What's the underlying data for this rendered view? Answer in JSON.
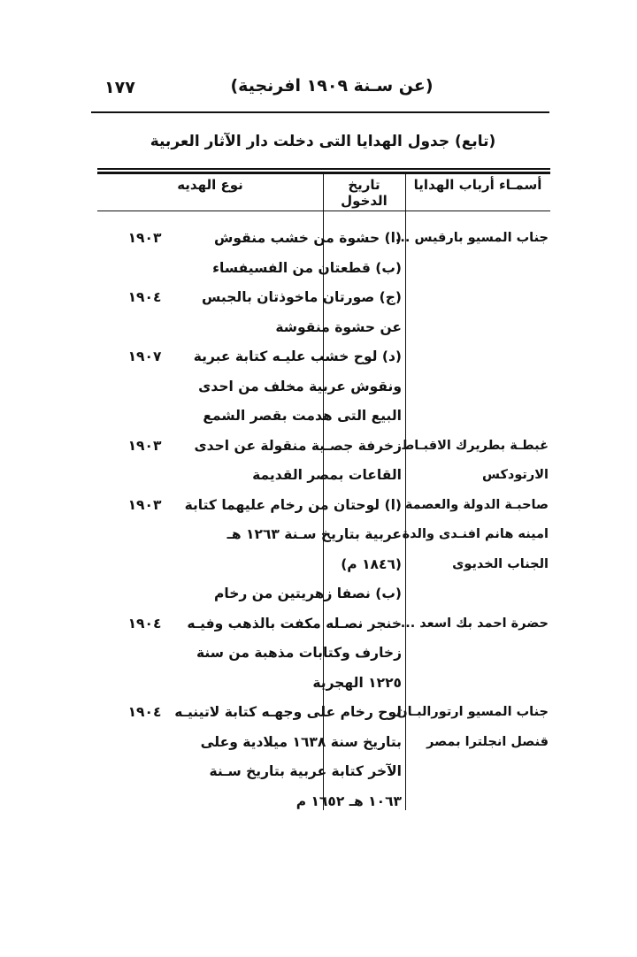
{
  "page_number": "١٧٧",
  "running_head": "(عن سـنة ١٩٠٩ افرنجية)",
  "table_title": "(تابع) جدول الهدايا التى دخلت دار الآثار العربية",
  "columns": {
    "names": "أسمـاء أرباب الهدايا",
    "date": "تاريخ الدخول",
    "gift": "نوع الهديه"
  },
  "entries": [
    {
      "name_lines": [
        "جناب المسيو بارقيس ..."
      ],
      "items": [
        {
          "date": "١٩٠٣",
          "lines": [
            "(ا) حشوة من خشب منقوش"
          ]
        },
        {
          "date": "",
          "lines": [
            "(ب) قطعتان من الفسيفساء"
          ]
        },
        {
          "date": "١٩٠٤",
          "lines": [
            "(ج) صورتان ماخوذتان بالجبس",
            "عن حشوة منقوشة"
          ]
        },
        {
          "date": "١٩٠٧",
          "lines": [
            "(د) لوح خشب عليـه كتابة عبرية",
            "ونقوش عربية مخلف من احدى",
            "البيع التى هدمت بقصر الشمع"
          ]
        }
      ]
    },
    {
      "name_lines": [
        "غبطـة بطريرك الاقبـاط",
        "الارتودكس"
      ],
      "items": [
        {
          "date": "١٩٠٣",
          "lines": [
            "زخرفة جصـية منقولة عن احدى",
            "القاعات بمصر القديمة"
          ]
        }
      ]
    },
    {
      "name_lines": [
        "صاحبـة الدولة والعصمة",
        "امينه هانم افنـدى والدة",
        "الجناب الخديوى"
      ],
      "items": [
        {
          "date": "١٩٠٣",
          "lines": [
            "(ا) لوحتان من رخام عليهما كتابة",
            "عربية بتاريخ سـنة ١٢٦٣ هـ",
            "(١٨٤٦ م)"
          ]
        },
        {
          "date": "",
          "lines": [
            "(ب) نصفا زهريتين من رخام"
          ]
        }
      ]
    },
    {
      "name_lines": [
        "حضرة احمد بك اسعد ..."
      ],
      "items": [
        {
          "date": "١٩٠٤",
          "lines": [
            "خنجر نصـله مكفت بالذهب وفيـه",
            "زخارف وكتابات مذهبة من سنة",
            "١٢٢٥ الهجرية"
          ]
        }
      ]
    },
    {
      "name_lines": [
        "جناب المسيو ارتورالبـان",
        "قنصل انجلترا بمصر"
      ],
      "items": [
        {
          "date": "١٩٠٤",
          "lines": [
            "لوح رخام على وجهـه كتابة لاتينيـه",
            "بتاريخ سنة ١٦٣٨ ميلادية وعلى",
            "الآخر كتابة عربية بتاريخ سـنة",
            "١٠٦٣ هـ ١٦٥٢ م"
          ]
        }
      ]
    }
  ]
}
